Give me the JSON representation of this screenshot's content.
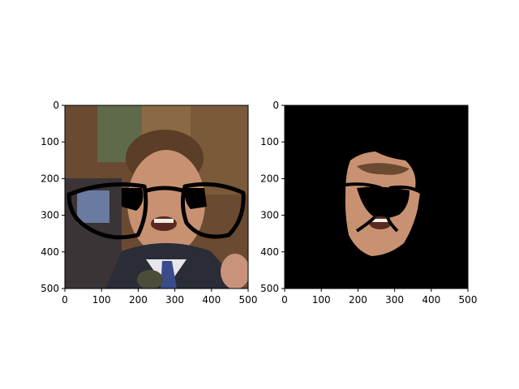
{
  "figure": {
    "panels": [
      {
        "id": "left",
        "content": "photo of a man wearing glasses in a crowd",
        "xlim": [
          0,
          500
        ],
        "ylim": [
          500,
          0
        ],
        "xticks": [
          "0",
          "100",
          "200",
          "300",
          "400",
          "500"
        ],
        "yticks": [
          "0",
          "100",
          "200",
          "300",
          "400",
          "500"
        ]
      },
      {
        "id": "right",
        "content": "segmented face on black background",
        "xlim": [
          0,
          500
        ],
        "ylim": [
          500,
          0
        ],
        "xticks": [
          "0",
          "100",
          "200",
          "300",
          "400",
          "500"
        ],
        "yticks": [
          "0",
          "100",
          "200",
          "300",
          "400",
          "500"
        ]
      }
    ],
    "colors": {
      "background": "#ffffff",
      "axes": "#000000",
      "mask_background": "#000000",
      "skin": "#c89272",
      "jacket": "#2a2c36",
      "tie": "#3b4c8c",
      "hair": "#5a3e25",
      "wall": "#6b4a32"
    }
  }
}
